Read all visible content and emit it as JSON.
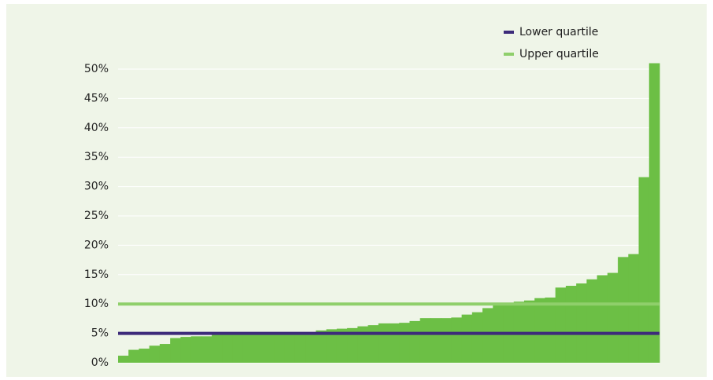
{
  "chart_data": {
    "type": "bar",
    "values": [
      1.2,
      2.2,
      2.4,
      2.9,
      3.2,
      4.2,
      4.4,
      4.5,
      4.5,
      4.9,
      5.0,
      5.0,
      5.0,
      5.0,
      5.0,
      5.0,
      5.1,
      5.1,
      5.2,
      5.5,
      5.7,
      5.8,
      5.9,
      6.2,
      6.4,
      6.7,
      6.7,
      6.8,
      7.1,
      7.6,
      7.6,
      7.6,
      7.7,
      8.2,
      8.6,
      9.3,
      10.0,
      10.2,
      10.4,
      10.6,
      11.0,
      11.1,
      12.8,
      13.1,
      13.5,
      14.2,
      14.9,
      15.3,
      18.0,
      18.5,
      31.6,
      51.0
    ],
    "color": "#6cbf45",
    "ylim": [
      0,
      50
    ],
    "yticks": [
      {
        "value": 0,
        "label": "0%"
      },
      {
        "value": 5,
        "label": "5%"
      },
      {
        "value": 10,
        "label": "10%"
      },
      {
        "value": 15,
        "label": "15%"
      },
      {
        "value": 20,
        "label": "20%"
      },
      {
        "value": 25,
        "label": "25%"
      },
      {
        "value": 30,
        "label": "30%"
      },
      {
        "value": 35,
        "label": "35%"
      },
      {
        "value": 40,
        "label": "40%"
      },
      {
        "value": 45,
        "label": "45%"
      },
      {
        "value": 50,
        "label": "50%"
      }
    ],
    "grid": true,
    "lines": [
      {
        "name": "Lower quartile",
        "value": 5,
        "color": "#3d2b7a"
      },
      {
        "name": "Upper quartile",
        "value": 10,
        "color": "#8fcf6b"
      }
    ],
    "legend": "upper-right"
  }
}
